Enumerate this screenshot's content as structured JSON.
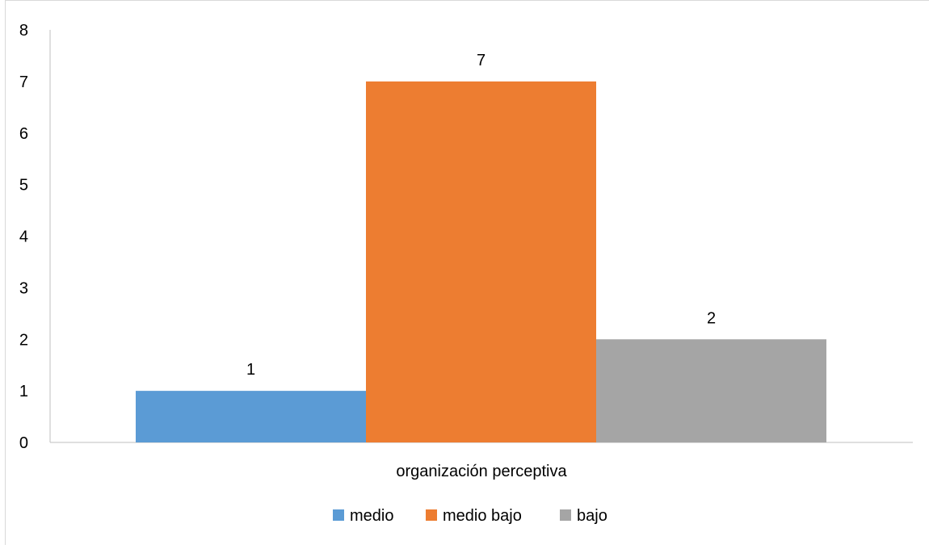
{
  "chart_data": {
    "type": "bar",
    "categories": [
      "organización perceptiva"
    ],
    "series": [
      {
        "name": "medio",
        "values": [
          1
        ],
        "color": "#5B9BD5"
      },
      {
        "name": "medio bajo",
        "values": [
          7
        ],
        "color": "#ED7D31"
      },
      {
        "name": "bajo",
        "values": [
          2
        ],
        "color": "#A5A5A5"
      }
    ],
    "ylim": [
      0,
      8
    ],
    "yticks": [
      "0",
      "1",
      "2",
      "3",
      "4",
      "5",
      "6",
      "7",
      "8"
    ],
    "data_labels": [
      "1",
      "7",
      "2"
    ],
    "legend_position": "bottom",
    "grid": false
  }
}
